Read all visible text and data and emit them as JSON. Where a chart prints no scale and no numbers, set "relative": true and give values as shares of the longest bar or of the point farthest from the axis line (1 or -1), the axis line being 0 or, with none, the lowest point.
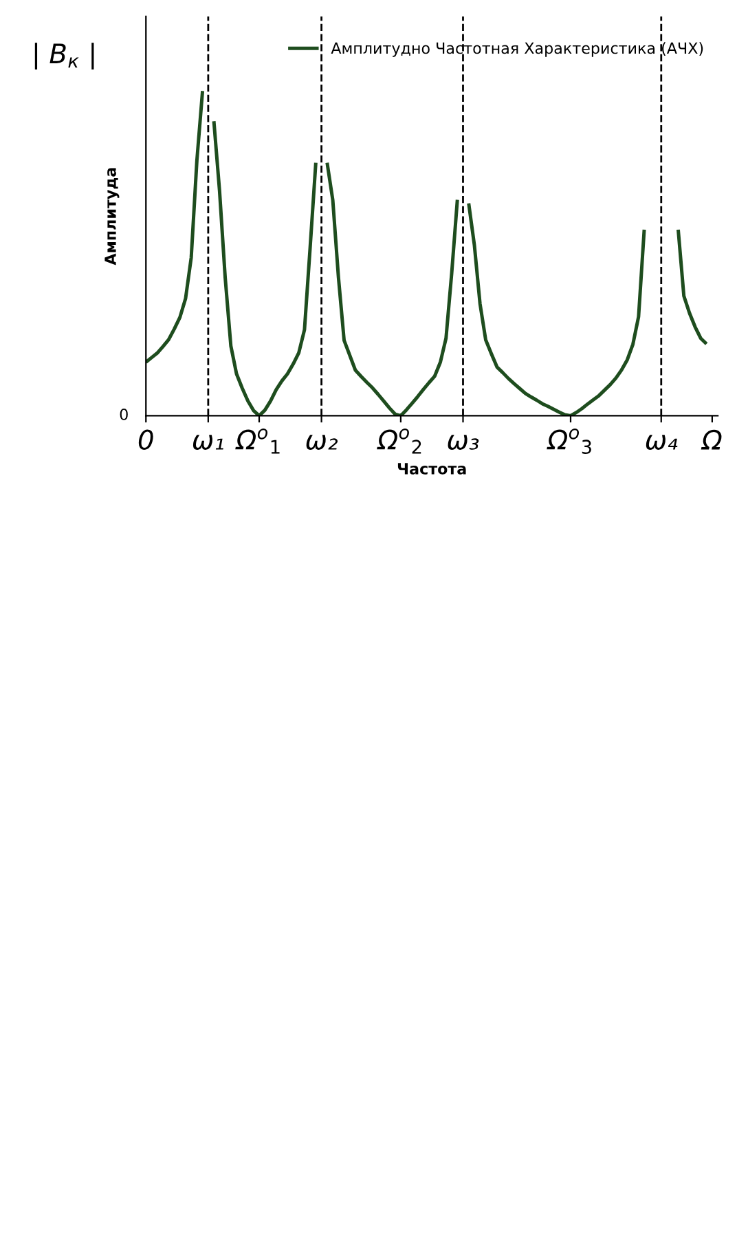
{
  "chart_data": {
    "type": "line",
    "relative": true,
    "xlabel": "Частота",
    "ylabel": "Амплитуда",
    "annotations": [
      "| B$_{к}$ |",
      "0"
    ],
    "categories": [
      "0",
      null,
      null,
      null,
      null,
      null,
      null,
      null,
      null,
      null,
      null,
      "ω₁",
      null,
      null,
      null,
      null,
      null,
      null,
      null,
      null,
      "Ω$^{o}$$_{1}$",
      null,
      null,
      null,
      null,
      null,
      null,
      null,
      null,
      null,
      null,
      "ω₂",
      null,
      null,
      null,
      null,
      null,
      null,
      null,
      null,
      null,
      null,
      null,
      null,
      null,
      "Ω$^{o}$$_{2}$",
      null,
      null,
      null,
      null,
      null,
      null,
      null,
      null,
      null,
      null,
      "ω₃",
      null,
      null,
      null,
      null,
      null,
      null,
      null,
      null,
      null,
      null,
      null,
      null,
      null,
      null,
      null,
      null,
      null,
      null,
      "Ω$^{o}$$_{3}$",
      null,
      null,
      null,
      null,
      null,
      null,
      null,
      null,
      null,
      null,
      null,
      null,
      null,
      null,
      null,
      "ω₄",
      null,
      null,
      null,
      null,
      null,
      null,
      null,
      null,
      "Ω"
    ],
    "series": [
      {
        "name": "Амплитудно Частотная Характеристика (АЧХ)",
        "color": "#1e4d1e",
        "values": [
          0.165,
          0.179,
          0.193,
          0.213,
          0.234,
          0.267,
          0.303,
          0.361,
          0.487,
          0.786,
          1.0,
          null,
          0.907,
          0.693,
          0.425,
          0.215,
          0.129,
          0.085,
          0.046,
          0.016,
          0,
          0.017,
          0.045,
          0.08,
          0.107,
          0.129,
          0.159,
          0.194,
          0.265,
          0.518,
          0.779,
          null,
          0.779,
          0.664,
          0.426,
          0.232,
          0.186,
          0.14,
          0.121,
          0.103,
          0.086,
          0.066,
          0.045,
          0.024,
          0.005,
          0,
          0.018,
          0.038,
          0.059,
          0.081,
          0.102,
          0.122,
          0.165,
          0.239,
          0.439,
          0.665,
          null,
          0.654,
          0.526,
          0.345,
          0.234,
          0.191,
          0.15,
          0.133,
          0.115,
          0.099,
          0.084,
          0.069,
          0.058,
          0.048,
          0.037,
          0.029,
          0.02,
          0.011,
          0.003,
          0,
          0.01,
          0.022,
          0.036,
          0.049,
          0.062,
          0.079,
          0.096,
          0.116,
          0.141,
          0.172,
          0.22,
          0.305,
          0.573,
          null,
          null,
          null,
          null,
          null,
          0.573,
          0.369,
          0.316,
          0.273,
          0.238,
          0.221,
          null
        ]
      }
    ],
    "ref_lines": [
      {
        "axis": "x",
        "value": "ω₁",
        "line_style": "dashed",
        "color": "#000000"
      },
      {
        "axis": "x",
        "value": "ω₂",
        "line_style": "dashed",
        "color": "#000000"
      },
      {
        "axis": "x",
        "value": "ω₃",
        "line_style": "dashed",
        "color": "#000000"
      },
      {
        "axis": "x",
        "value": "ω₄",
        "line_style": "dashed",
        "color": "#000000"
      }
    ],
    "legend": "top right",
    "grid": false,
    "marker": "none",
    "line_style": "solid"
  }
}
